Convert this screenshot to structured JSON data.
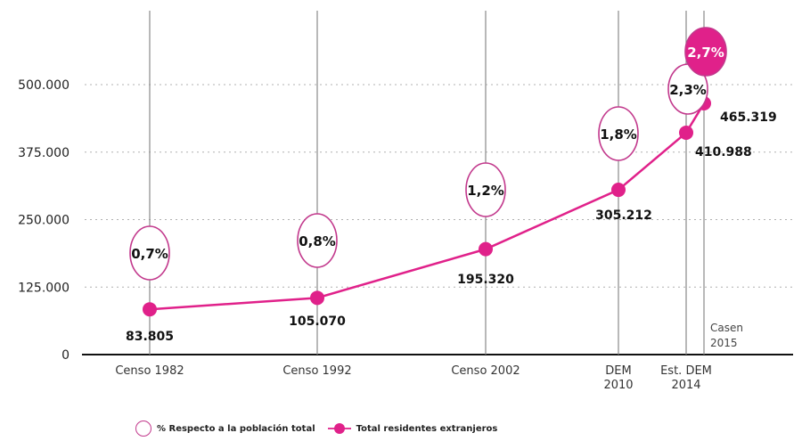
{
  "chart_data": {
    "type": "line",
    "title": "",
    "xlabel": "",
    "ylabel": "",
    "ylim": [
      0,
      520000
    ],
    "yticks": [
      "0",
      "125.000",
      "250.000",
      "375.000",
      "500.000"
    ],
    "ytick_values": [
      0,
      125000,
      250000,
      375000,
      500000
    ],
    "grid": "horizontal dotted, vertical solid at each category",
    "legend_position": "bottom-left",
    "categories": [
      "Censo 1982",
      "Censo 1992",
      "Censo 2002",
      "DEM 2010",
      "Est. DEM 2014",
      "Casen 2015"
    ],
    "category_labels": [
      [
        "Censo 1982"
      ],
      [
        "Censo 1992"
      ],
      [
        "Censo 2002"
      ],
      [
        "DEM",
        "2010"
      ],
      [
        "Est. DEM",
        "2014"
      ],
      [
        "Casen",
        "2015"
      ]
    ],
    "series": [
      {
        "name": "Total residentes extranjeros",
        "values": [
          83805,
          105070,
          195320,
          305212,
          410988,
          465319
        ],
        "labels": [
          "83.805",
          "105.070",
          "195.320",
          "305.212",
          "410.988",
          "465.319"
        ],
        "color": "#e0218a"
      },
      {
        "name": "% Respecto a la población total",
        "values": [
          0.7,
          0.8,
          1.2,
          1.8,
          2.3,
          2.7
        ],
        "labels": [
          "0,7%",
          "0,8%",
          "1,2%",
          "1,8%",
          "2,3%",
          "2,7%"
        ],
        "color": "#c2388c",
        "highlight_last_fill": "#e0218a"
      }
    ]
  },
  "legend": {
    "pct_label": "% Respecto a la población total",
    "total_label": "Total residentes extranjeros"
  }
}
